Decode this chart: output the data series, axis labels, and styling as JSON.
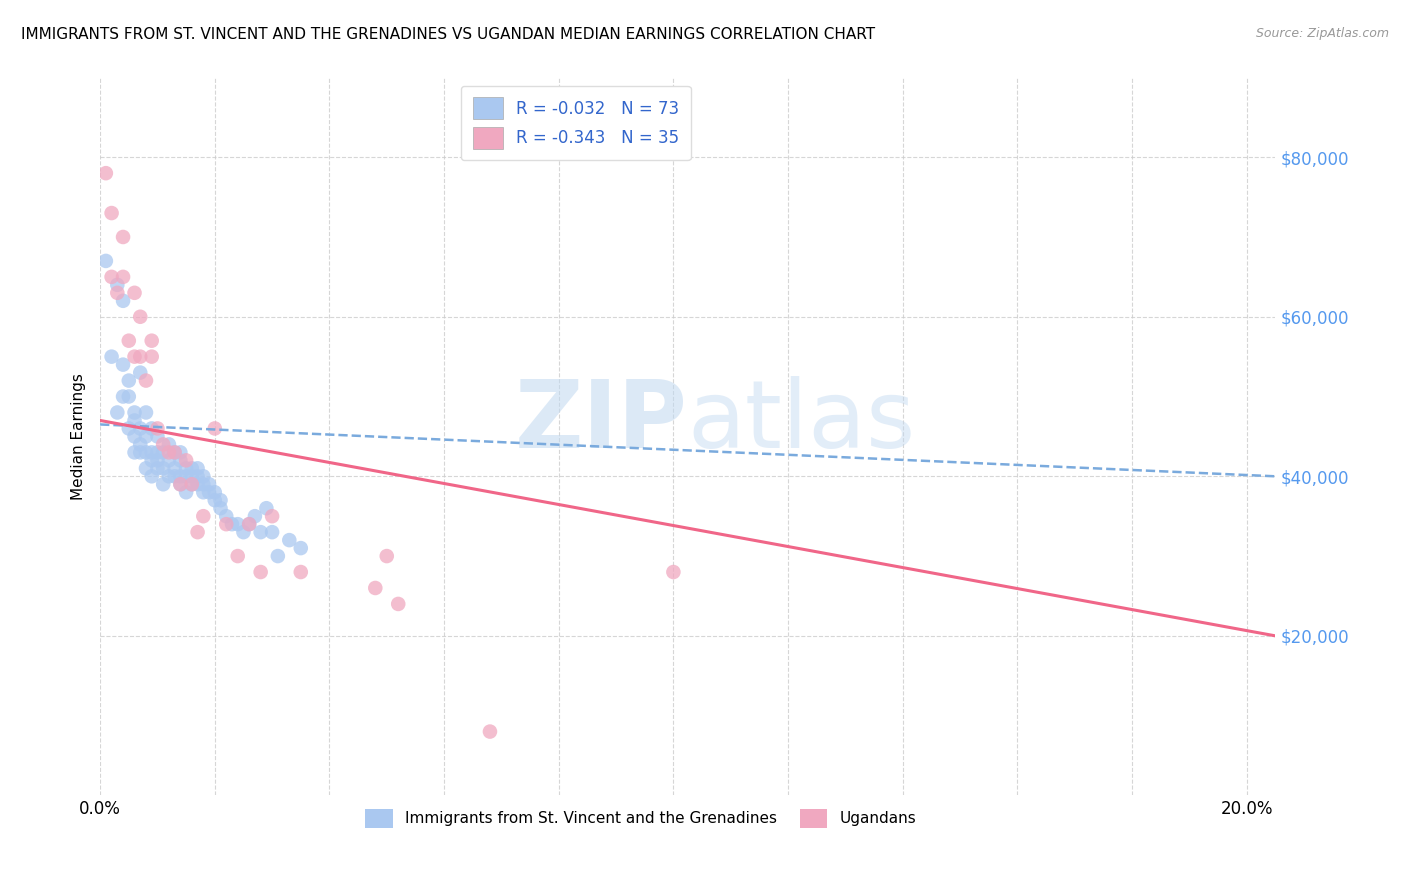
{
  "title": "IMMIGRANTS FROM ST. VINCENT AND THE GRENADINES VS UGANDAN MEDIAN EARNINGS CORRELATION CHART",
  "source": "Source: ZipAtlas.com",
  "ylabel": "Median Earnings",
  "xlim": [
    0.0,
    0.205
  ],
  "ylim": [
    0,
    90000
  ],
  "yticks": [
    20000,
    40000,
    60000,
    80000
  ],
  "ytick_labels": [
    "$20,000",
    "$40,000",
    "$60,000",
    "$80,000"
  ],
  "xtick_positions": [
    0.0,
    0.02,
    0.04,
    0.06,
    0.08,
    0.1,
    0.12,
    0.14,
    0.16,
    0.18,
    0.2
  ],
  "xtick_labels": [
    "0.0%",
    "",
    "",
    "",
    "",
    "",
    "",
    "",
    "",
    "",
    "20.0%"
  ],
  "blue_R": -0.032,
  "blue_N": 73,
  "pink_R": -0.343,
  "pink_N": 35,
  "blue_color": "#aac8f0",
  "pink_color": "#f0a8c0",
  "blue_line_color": "#7aaadd",
  "pink_line_color": "#f06688",
  "watermark_zip": "ZIP",
  "watermark_atlas": "atlas",
  "legend_label_blue": "Immigrants from St. Vincent and the Grenadines",
  "legend_label_pink": "Ugandans",
  "blue_scatter_x": [
    0.001,
    0.002,
    0.003,
    0.003,
    0.004,
    0.004,
    0.004,
    0.005,
    0.005,
    0.005,
    0.006,
    0.006,
    0.006,
    0.006,
    0.007,
    0.007,
    0.007,
    0.007,
    0.008,
    0.008,
    0.008,
    0.008,
    0.009,
    0.009,
    0.009,
    0.009,
    0.01,
    0.01,
    0.01,
    0.01,
    0.011,
    0.011,
    0.011,
    0.012,
    0.012,
    0.012,
    0.013,
    0.013,
    0.013,
    0.014,
    0.014,
    0.014,
    0.014,
    0.015,
    0.015,
    0.015,
    0.016,
    0.016,
    0.016,
    0.017,
    0.017,
    0.017,
    0.018,
    0.018,
    0.018,
    0.019,
    0.019,
    0.02,
    0.02,
    0.021,
    0.021,
    0.022,
    0.023,
    0.024,
    0.025,
    0.026,
    0.027,
    0.028,
    0.029,
    0.03,
    0.031,
    0.033,
    0.035
  ],
  "blue_scatter_y": [
    67000,
    55000,
    64000,
    48000,
    50000,
    54000,
    62000,
    46000,
    50000,
    52000,
    43000,
    45000,
    47000,
    48000,
    43000,
    44000,
    46000,
    53000,
    41000,
    43000,
    45000,
    48000,
    40000,
    42000,
    43000,
    46000,
    41000,
    42000,
    43000,
    45000,
    39000,
    41000,
    43000,
    40000,
    42000,
    44000,
    40000,
    41000,
    43000,
    39000,
    40000,
    42000,
    43000,
    38000,
    40000,
    41000,
    39000,
    40000,
    41000,
    39000,
    40000,
    41000,
    38000,
    39000,
    40000,
    38000,
    39000,
    37000,
    38000,
    37000,
    36000,
    35000,
    34000,
    34000,
    33000,
    34000,
    35000,
    33000,
    36000,
    33000,
    30000,
    32000,
    31000
  ],
  "pink_scatter_x": [
    0.001,
    0.002,
    0.002,
    0.003,
    0.004,
    0.004,
    0.005,
    0.006,
    0.006,
    0.007,
    0.007,
    0.008,
    0.009,
    0.009,
    0.01,
    0.011,
    0.012,
    0.013,
    0.014,
    0.015,
    0.016,
    0.017,
    0.018,
    0.02,
    0.022,
    0.024,
    0.026,
    0.028,
    0.03,
    0.035,
    0.048,
    0.052,
    0.068,
    0.1,
    0.05
  ],
  "pink_scatter_y": [
    78000,
    65000,
    73000,
    63000,
    70000,
    65000,
    57000,
    55000,
    63000,
    55000,
    60000,
    52000,
    55000,
    57000,
    46000,
    44000,
    43000,
    43000,
    39000,
    42000,
    39000,
    33000,
    35000,
    46000,
    34000,
    30000,
    34000,
    28000,
    35000,
    28000,
    26000,
    24000,
    8000,
    28000,
    30000
  ],
  "blue_line_x0": 0.0,
  "blue_line_x1": 0.205,
  "blue_line_y0": 46500,
  "blue_line_y1": 40000,
  "pink_line_x0": 0.0,
  "pink_line_x1": 0.205,
  "pink_line_y0": 47000,
  "pink_line_y1": 20000
}
